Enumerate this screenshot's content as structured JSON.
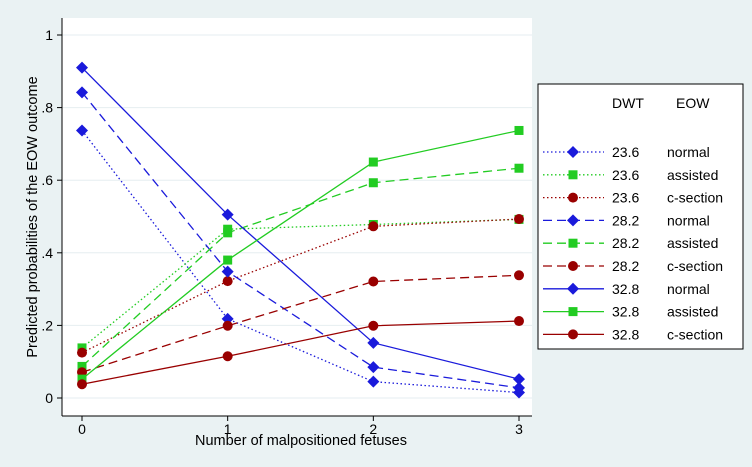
{
  "chart_data": {
    "type": "line",
    "xlabel": "Number of malpositioned fetuses",
    "ylabel": "Predicted probabilities of the EOW outcome",
    "x": [
      0,
      1,
      2,
      3
    ],
    "xlim": [
      0,
      3
    ],
    "ylim": [
      0,
      1
    ],
    "xticks": [
      0,
      1,
      2,
      3
    ],
    "xtick_labels": [
      "0",
      "1",
      "2",
      "3"
    ],
    "yticks": [
      0,
      0.2,
      0.4,
      0.6,
      0.8,
      1
    ],
    "ytick_labels": [
      "0",
      ".2",
      ".4",
      ".6",
      ".8",
      "1"
    ],
    "grid": "horizontal",
    "legend": {
      "placement": "right",
      "headers": [
        "DWT",
        "EOW"
      ]
    },
    "colors": {
      "normal": "#1a1adb",
      "assisted": "#22cc22",
      "c-section": "#990000"
    },
    "series": [
      {
        "dwt": "23.6",
        "eow": "normal",
        "dash": "dotted",
        "marker": "diamond",
        "values": [
          0.737,
          0.218,
          0.045,
          0.015
        ]
      },
      {
        "dwt": "23.6",
        "eow": "assisted",
        "dash": "dotted",
        "marker": "square",
        "values": [
          0.138,
          0.465,
          0.478,
          0.492
        ]
      },
      {
        "dwt": "23.6",
        "eow": "c-section",
        "dash": "dotted",
        "marker": "circle",
        "values": [
          0.125,
          0.322,
          0.473,
          0.493
        ]
      },
      {
        "dwt": "28.2",
        "eow": "normal",
        "dash": "dashed",
        "marker": "diamond",
        "values": [
          0.842,
          0.348,
          0.085,
          0.028
        ]
      },
      {
        "dwt": "28.2",
        "eow": "assisted",
        "dash": "dashed",
        "marker": "square",
        "values": [
          0.087,
          0.455,
          0.593,
          0.633
        ]
      },
      {
        "dwt": "28.2",
        "eow": "c-section",
        "dash": "dashed",
        "marker": "circle",
        "values": [
          0.071,
          0.199,
          0.321,
          0.338
        ]
      },
      {
        "dwt": "32.8",
        "eow": "normal",
        "dash": "solid",
        "marker": "diamond",
        "values": [
          0.91,
          0.505,
          0.152,
          0.052
        ]
      },
      {
        "dwt": "32.8",
        "eow": "assisted",
        "dash": "solid",
        "marker": "square",
        "values": [
          0.052,
          0.38,
          0.65,
          0.737
        ]
      },
      {
        "dwt": "32.8",
        "eow": "c-section",
        "dash": "solid",
        "marker": "circle",
        "values": [
          0.038,
          0.115,
          0.199,
          0.212
        ]
      }
    ]
  }
}
